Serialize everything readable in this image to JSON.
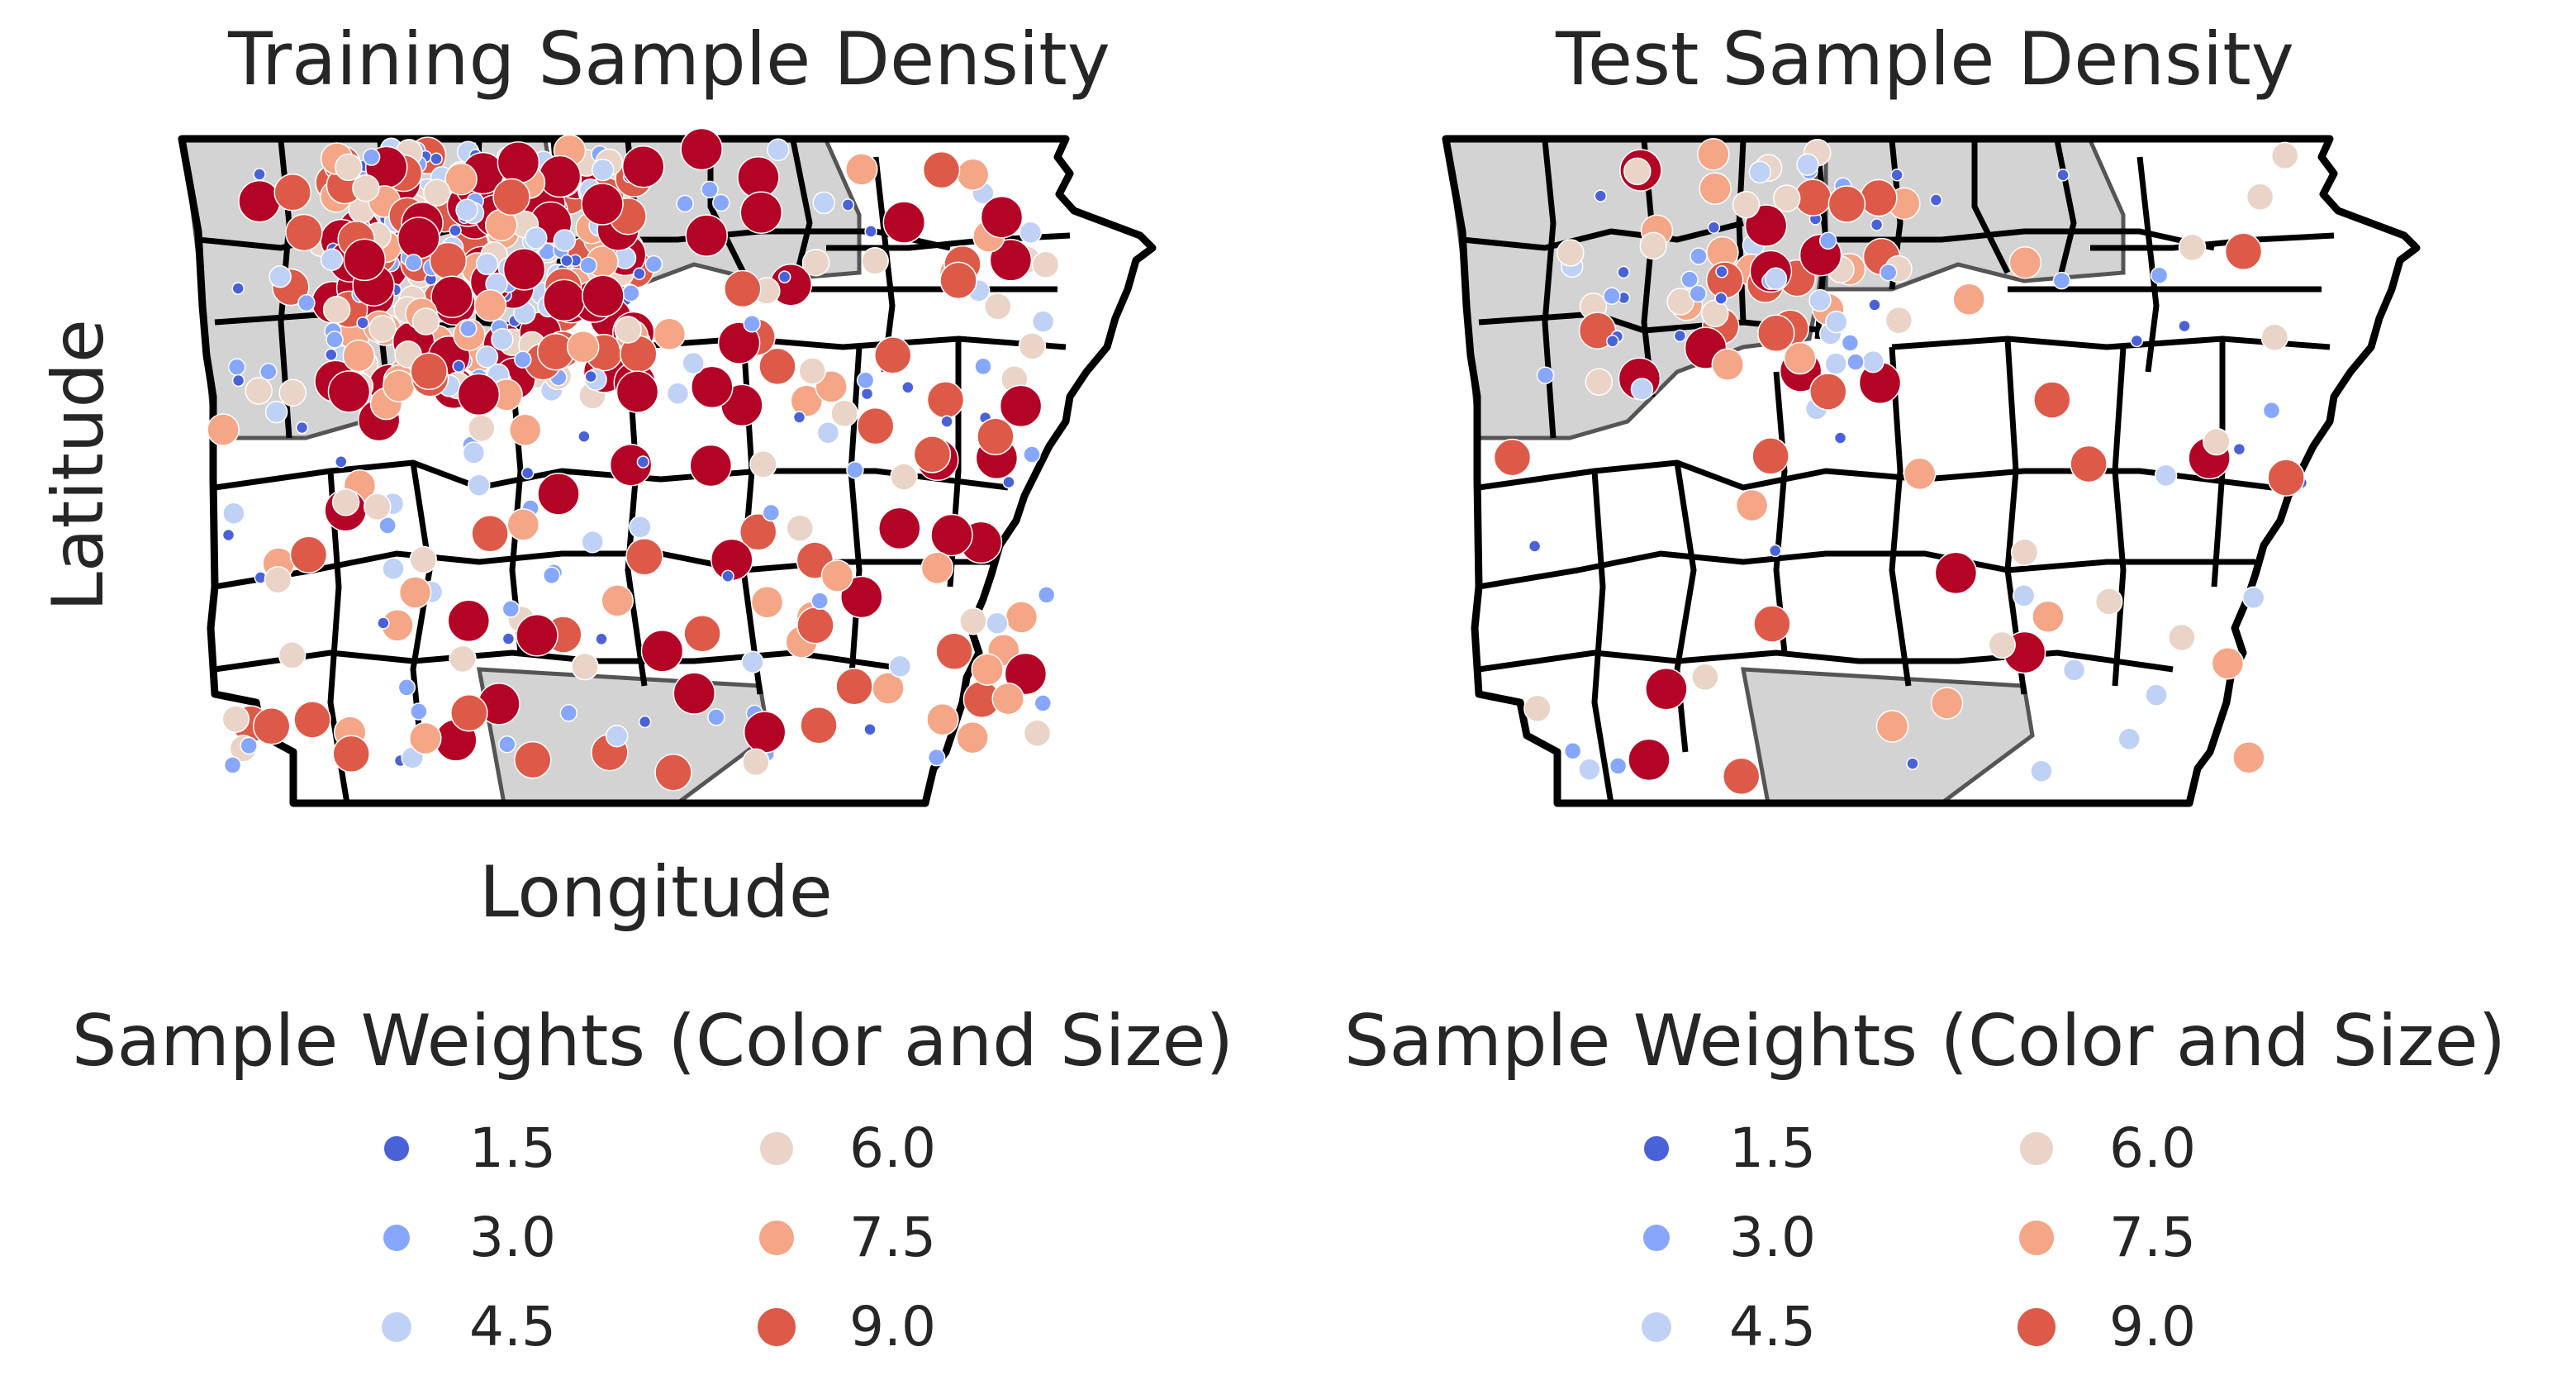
{
  "panels": [
    {
      "title": "Training Sample Density",
      "xlabel": "Longitude",
      "ylabel": "Latitude"
    },
    {
      "title": "Test Sample Density",
      "xlabel": "",
      "ylabel": ""
    }
  ],
  "legend": {
    "title": "Sample Weights (Color and Size)",
    "entries": [
      {
        "label": "1.5",
        "value": 1.5,
        "color": "#4a62d8"
      },
      {
        "label": "3.0",
        "value": 3.0,
        "color": "#86a7fb"
      },
      {
        "label": "4.5",
        "value": 4.5,
        "color": "#bfd2f6"
      },
      {
        "label": "6.0",
        "value": 6.0,
        "color": "#ead4c8"
      },
      {
        "label": "7.5",
        "value": 7.5,
        "color": "#f4a687"
      },
      {
        "label": "9.0",
        "value": 9.0,
        "color": "#dd5a48"
      }
    ]
  },
  "colors": {
    "shaded_county": "#d3d3d3",
    "county_border": "#000000",
    "text": "#262626"
  }
}
